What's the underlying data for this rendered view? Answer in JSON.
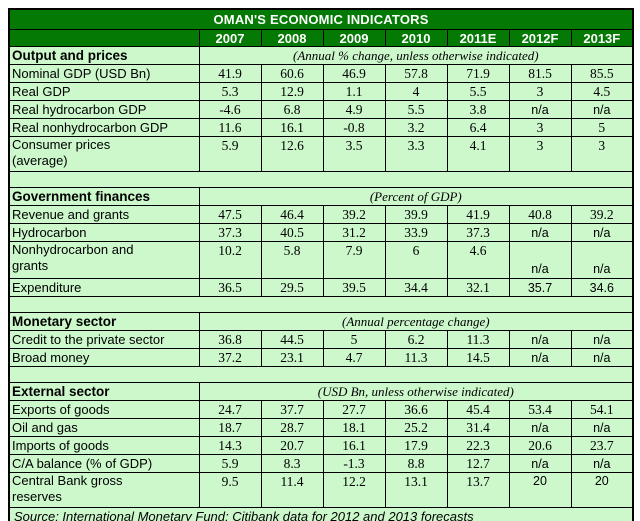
{
  "chart_data": {
    "type": "table",
    "title": "OMAN'S ECONOMIC INDICATORS",
    "columns": [
      "2007",
      "2008",
      "2009",
      "2010",
      "2011E",
      "2012F",
      "2013F"
    ],
    "sections": [
      {
        "name": "Output and prices",
        "note": "(Annual % change, unless otherwise indicated)",
        "rows": [
          {
            "label": "Nominal GDP (USD Bn)",
            "values": [
              "41.9",
              "60.6",
              "46.9",
              "57.8",
              "71.9",
              "81.5",
              "85.5"
            ]
          },
          {
            "label": "Real GDP",
            "values": [
              "5.3",
              "12.9",
              "1.1",
              "4",
              "5.5",
              "3",
              "4.5"
            ]
          },
          {
            "label": "Real hydrocarbon GDP",
            "values": [
              "-4.6",
              "6.8",
              "4.9",
              "5.5",
              "3.8",
              "n/a",
              "n/a"
            ]
          },
          {
            "label": "Real nonhydrocarbon GDP",
            "values": [
              "11.6",
              "16.1",
              "-0.8",
              "3.2",
              "6.4",
              "3",
              "5"
            ]
          },
          {
            "label": "Consumer prices\n(average)",
            "values": [
              "5.9",
              "12.6",
              "3.5",
              "3.3",
              "4.1",
              "3",
              "3"
            ],
            "two_line": true
          }
        ]
      },
      {
        "name": "Government finances",
        "note": "(Percent of GDP)",
        "rows": [
          {
            "label": "Revenue and grants",
            "values": [
              "47.5",
              "46.4",
              "39.2",
              "39.9",
              "41.9",
              "40.8",
              "39.2"
            ]
          },
          {
            "label": "Hydrocarbon",
            "values": [
              "37.3",
              "40.5",
              "31.2",
              "33.9",
              "37.3",
              "n/a",
              "n/a"
            ]
          },
          {
            "label": "Nonhydrocarbon and\ngrants",
            "values": [
              "10.2",
              "5.8",
              "7.9",
              "6",
              "4.6",
              "n/a",
              "n/a"
            ],
            "two_line": true,
            "na_bottom": true
          },
          {
            "label": "Expenditure",
            "values": [
              "36.5",
              "29.5",
              "39.5",
              "34.4",
              "32.1",
              "35.7",
              "34.6"
            ],
            "alt_cols": [
              5,
              6
            ]
          }
        ]
      },
      {
        "name": "Monetary sector",
        "note": "(Annual percentage change)",
        "rows": [
          {
            "label": "Credit to the private sector",
            "values": [
              "36.8",
              "44.5",
              "5",
              "6.2",
              "11.3",
              "n/a",
              "n/a"
            ]
          },
          {
            "label": "Broad money",
            "values": [
              "37.2",
              "23.1",
              "4.7",
              "11.3",
              "14.5",
              "n/a",
              "n/a"
            ]
          }
        ]
      },
      {
        "name": "External sector",
        "note": "(USD Bn, unless otherwise indicated)",
        "rows": [
          {
            "label": "Exports of goods",
            "values": [
              "24.7",
              "37.7",
              "27.7",
              "36.6",
              "45.4",
              "53.4",
              "54.1"
            ]
          },
          {
            "label": "Oil and gas",
            "values": [
              "18.7",
              "28.7",
              "18.1",
              "25.2",
              "31.4",
              "n/a",
              "n/a"
            ]
          },
          {
            "label": "Imports of goods",
            "values": [
              "14.3",
              "20.7",
              "16.1",
              "17.9",
              "22.3",
              "20.6",
              "23.7"
            ]
          },
          {
            "label": "C/A balance (% of GDP)",
            "values": [
              "5.9",
              "8.3",
              "-1.3",
              "8.8",
              "12.7",
              "n/a",
              "n/a"
            ]
          },
          {
            "label": "Central Bank gross\nreserves",
            "values": [
              "9.5",
              "11.4",
              "12.2",
              "13.1",
              "13.7",
              "20",
              "20"
            ],
            "two_line": true,
            "alt_cols": [
              5,
              6
            ]
          }
        ]
      }
    ],
    "source": "Source: International Monetary Fund; Citibank data for 2012 and 2013 forecasts",
    "colors": {
      "header_green": "#047a04",
      "body_green": "#ccf8cc",
      "border": "#000000",
      "header_text": "#ffffff",
      "body_text": "#000000"
    }
  }
}
